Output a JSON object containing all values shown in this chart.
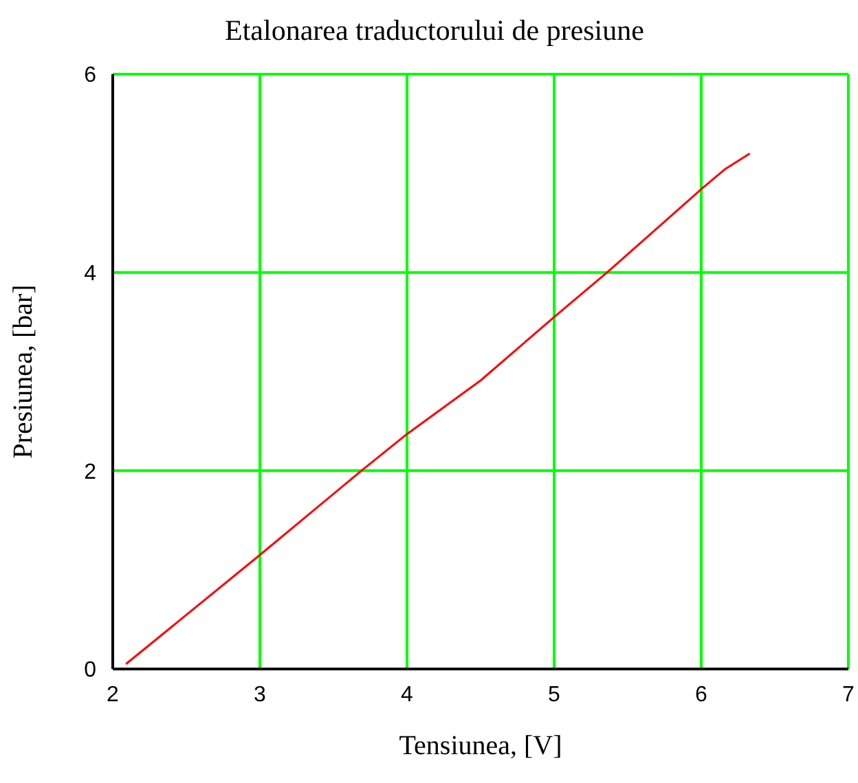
{
  "chart_data": {
    "type": "line",
    "title": "Etalonarea traductorului de presiune",
    "xlabel": "Tensiunea, [V]",
    "ylabel": "Presiunea, [bar]",
    "x": [
      2.09,
      3,
      3.69,
      4,
      4.5,
      5,
      5.36,
      6,
      6.16,
      6.33
    ],
    "values": [
      0.05,
      1.15,
      2,
      2.37,
      2.91,
      3.55,
      4,
      4.84,
      5.04,
      5.2
    ],
    "color": "#ff0000",
    "marker": "none",
    "line_style": "solid",
    "xlim": [
      2,
      7
    ],
    "xticks": [
      2,
      3,
      4,
      5,
      6,
      7
    ],
    "ylim": [
      0,
      6
    ],
    "yticks": [
      0,
      2,
      4,
      6
    ],
    "grid": true
  }
}
